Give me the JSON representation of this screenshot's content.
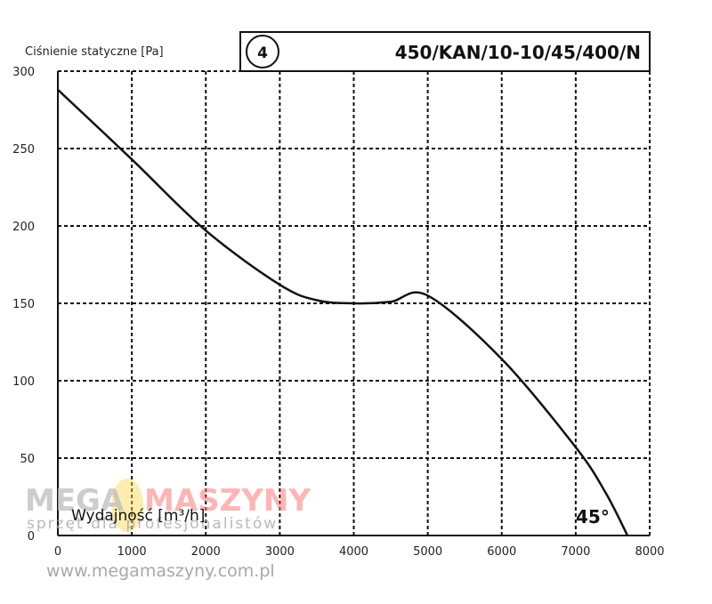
{
  "chart_data": {
    "type": "line",
    "ylabel": "Ciśnienie statyczne [Pa]",
    "xlabel": "Wydajność [m³/h]",
    "curve_number": "4",
    "model": "450/KAN/10-10/45/400/N",
    "angle_label": "45°",
    "xlim": [
      0,
      8000
    ],
    "ylim": [
      0,
      300
    ],
    "x_ticks": [
      0,
      1000,
      2000,
      3000,
      4000,
      5000,
      6000,
      7000,
      8000
    ],
    "y_ticks": [
      0,
      50,
      100,
      150,
      200,
      250,
      300
    ],
    "grid": true,
    "series": [
      {
        "x": [
          0,
          1000,
          2000,
          3000,
          3500,
          4000,
          4500,
          5000,
          6000,
          7000,
          7400,
          7700
        ],
        "y": [
          288,
          243,
          197,
          162,
          152,
          150,
          151,
          155,
          114,
          57,
          28,
          0
        ]
      }
    ]
  },
  "watermark": {
    "brand_left": "MEGA",
    "brand_right": "MASZYNY",
    "tagline": "sprzęt dla profesjonalistów",
    "url": "www.megamaszyny.com.pl"
  }
}
